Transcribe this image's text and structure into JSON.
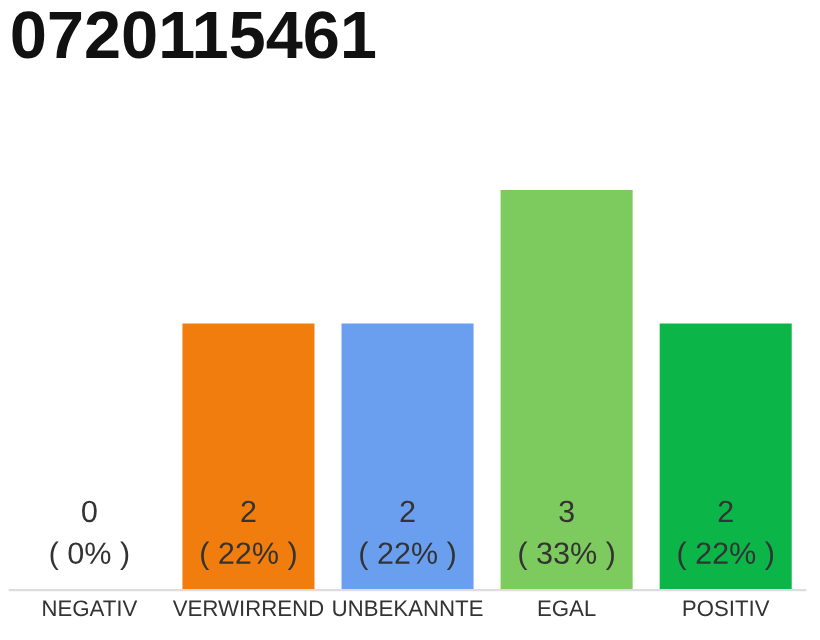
{
  "chart_data": {
    "type": "bar",
    "title": "0720115461",
    "categories": [
      "NEGATIV",
      "VERWIRREND",
      "UNBEKANNTE",
      "EGAL",
      "POSITIV"
    ],
    "values": [
      0,
      2,
      2,
      3,
      2
    ],
    "colors": [
      "#eeeeee",
      "#f07d0d",
      "#6a9ff0",
      "#7dcb5e",
      "#0bb548"
    ],
    "value_labels": [
      "0\n( 0% )",
      "2\n( 22% )",
      "2\n( 22% )",
      "3\n( 33% )",
      "2\n( 22% )"
    ],
    "grid": false,
    "legend": false
  }
}
